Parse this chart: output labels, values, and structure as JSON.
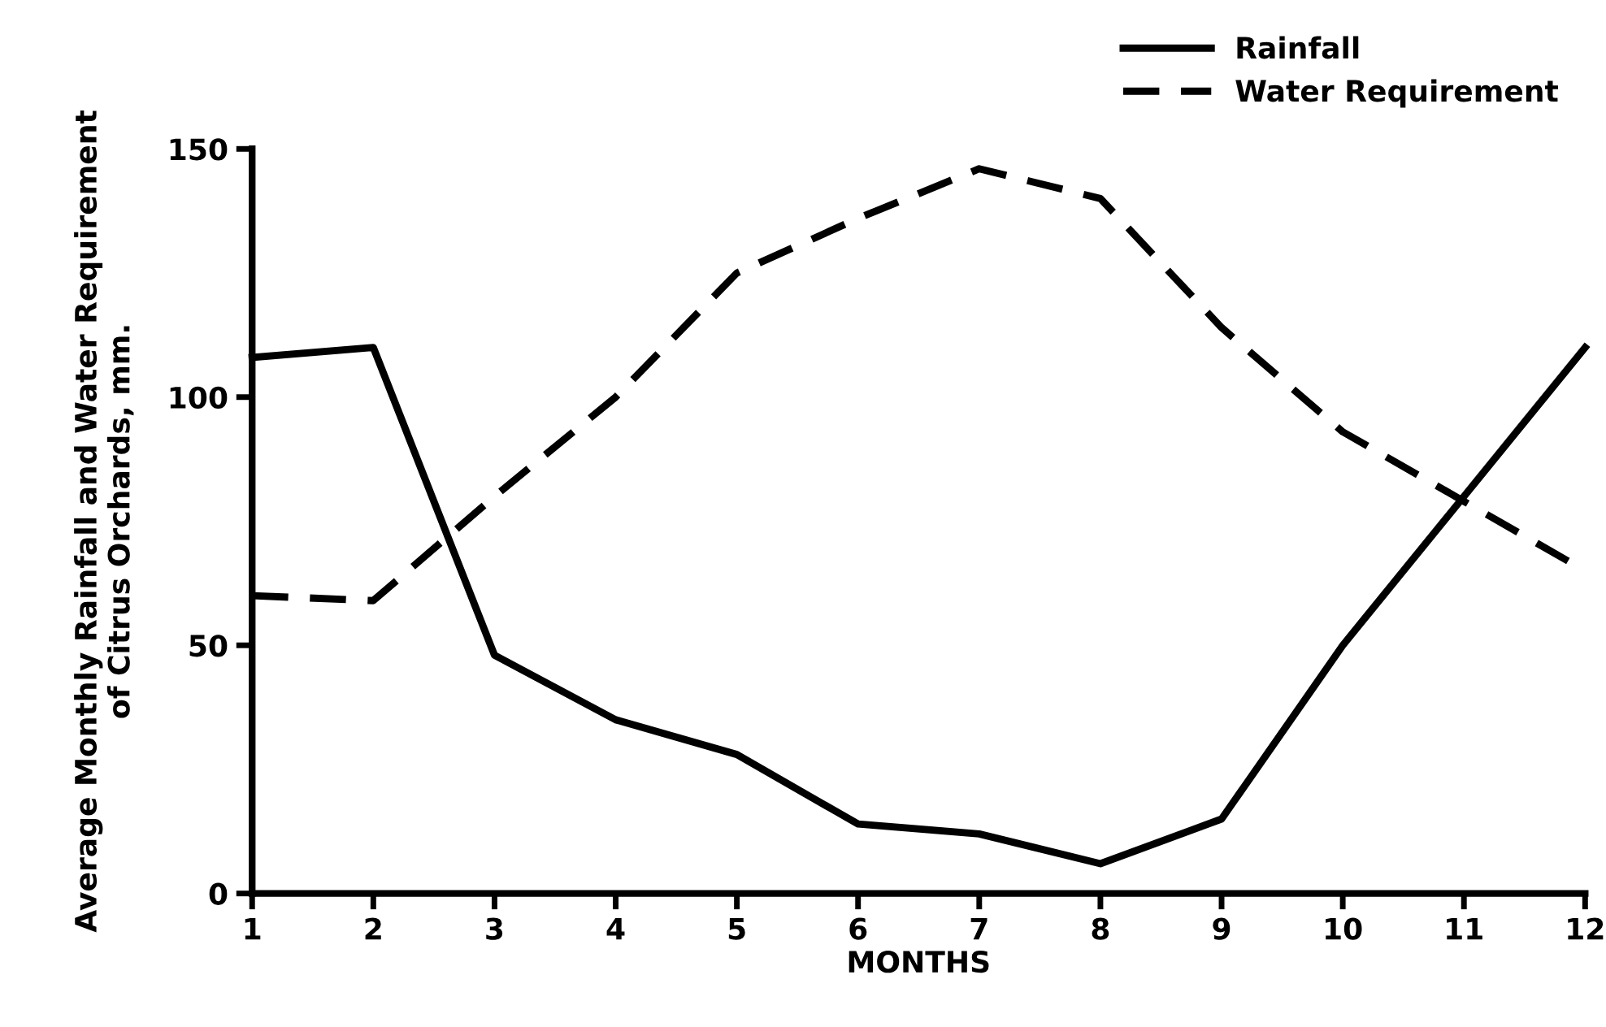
{
  "chart_data": {
    "type": "line",
    "xlabel": "MONTHS",
    "ylabel": "Average Monthly Rainfall and Water Requirement\nof Citrus Orchards, mm.",
    "x": [
      1,
      2,
      3,
      4,
      5,
      6,
      7,
      8,
      9,
      10,
      11,
      12
    ],
    "series": [
      {
        "name": "Rainfall",
        "color": "#000000",
        "line_style": "solid",
        "values": [
          108,
          110,
          48,
          35,
          28,
          14,
          12,
          6,
          15,
          50,
          80,
          110
        ]
      },
      {
        "name": "Water Requirement",
        "color": "#000000",
        "line_style": "dashed",
        "values": [
          60,
          59,
          80,
          100,
          125,
          136,
          146,
          140,
          114,
          93,
          79,
          65
        ]
      }
    ],
    "xlim": [
      1,
      12
    ],
    "xticks": [
      1,
      2,
      3,
      4,
      5,
      6,
      7,
      8,
      9,
      10,
      11,
      12
    ],
    "ylim": [
      0,
      150
    ],
    "yticks": [
      0,
      50,
      100,
      150
    ],
    "grid": false,
    "legend": "top right",
    "marker": "none"
  }
}
